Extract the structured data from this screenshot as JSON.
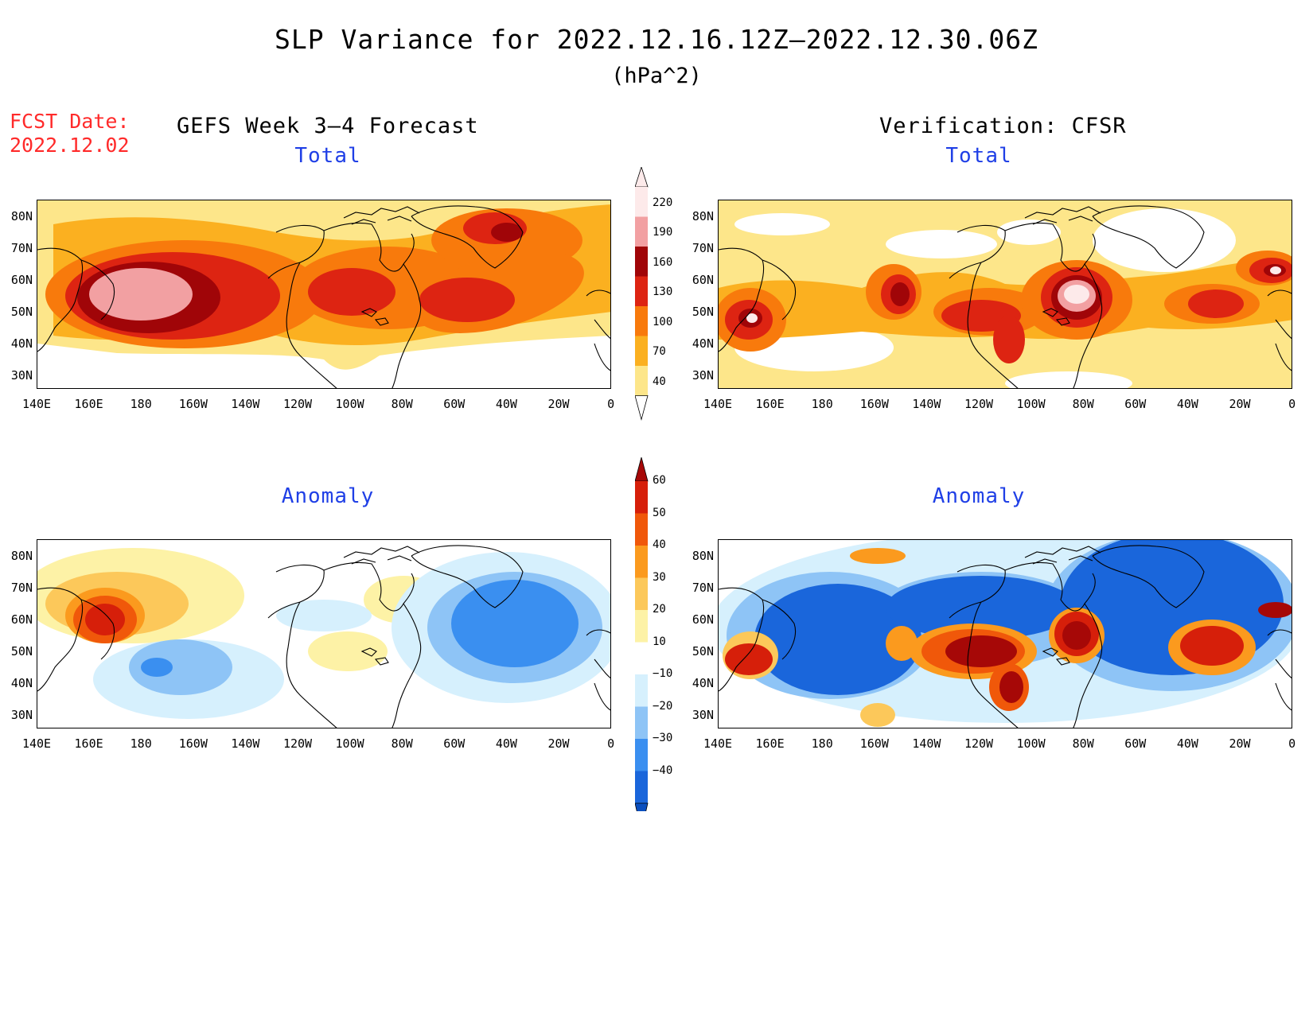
{
  "title": "SLP Variance for 2022.12.16.12Z–2022.12.30.06Z",
  "units": "(hPa^2)",
  "fcst_label": "FCST Date:",
  "fcst_value": "2022.12.02",
  "left_heading": "GEFS Week 3–4 Forecast",
  "right_heading": "Verification: CFSR",
  "panel_titles": {
    "forecast_total": "Total",
    "verification_total": "Total",
    "forecast_anomaly": "Anomaly",
    "verification_anomaly": "Anomaly"
  },
  "lat_labels": [
    "80N",
    "70N",
    "60N",
    "50N",
    "40N",
    "30N"
  ],
  "lon_labels": [
    "140E",
    "160E",
    "180",
    "160W",
    "140W",
    "120W",
    "100W",
    "80W",
    "60W",
    "40W",
    "20W",
    "0"
  ],
  "colorbars": {
    "total": {
      "labels": [
        "220",
        "190",
        "160",
        "130",
        "100",
        "70",
        "40"
      ],
      "colors_bottom_to_top": [
        "#fde68a",
        "#fbb020",
        "#f87a0c",
        "#dd2412",
        "#a00508",
        "#f2a0a2",
        "#fdeaea"
      ]
    },
    "anomaly": {
      "labels": [
        "60",
        "50",
        "40",
        "30",
        "20",
        "10",
        "−10",
        "−20",
        "−30",
        "−40"
      ],
      "colors_bottom_to_top": [
        "#0a4fbf",
        "#1a66db",
        "#3a8ff0",
        "#8ec4f6",
        "#d6f0fd",
        "#ffffff",
        "#fdf2a6",
        "#fcc85a",
        "#fb9a1e",
        "#f0580a",
        "#d61f0a",
        "#a60807"
      ]
    }
  }
}
